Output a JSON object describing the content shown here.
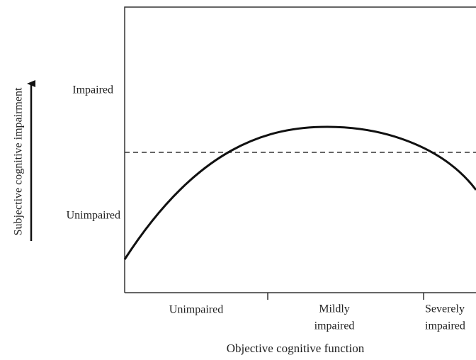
{
  "y_axis": {
    "title": "Subjective cognitive impairment",
    "levels": [
      "Impaired",
      "Unimpaired"
    ]
  },
  "x_axis": {
    "title": "Objective cognitive function",
    "levels": [
      [
        "Unimpaired"
      ],
      [
        "Mildly",
        "impaired"
      ],
      [
        "Severely",
        "impaired"
      ]
    ]
  }
}
